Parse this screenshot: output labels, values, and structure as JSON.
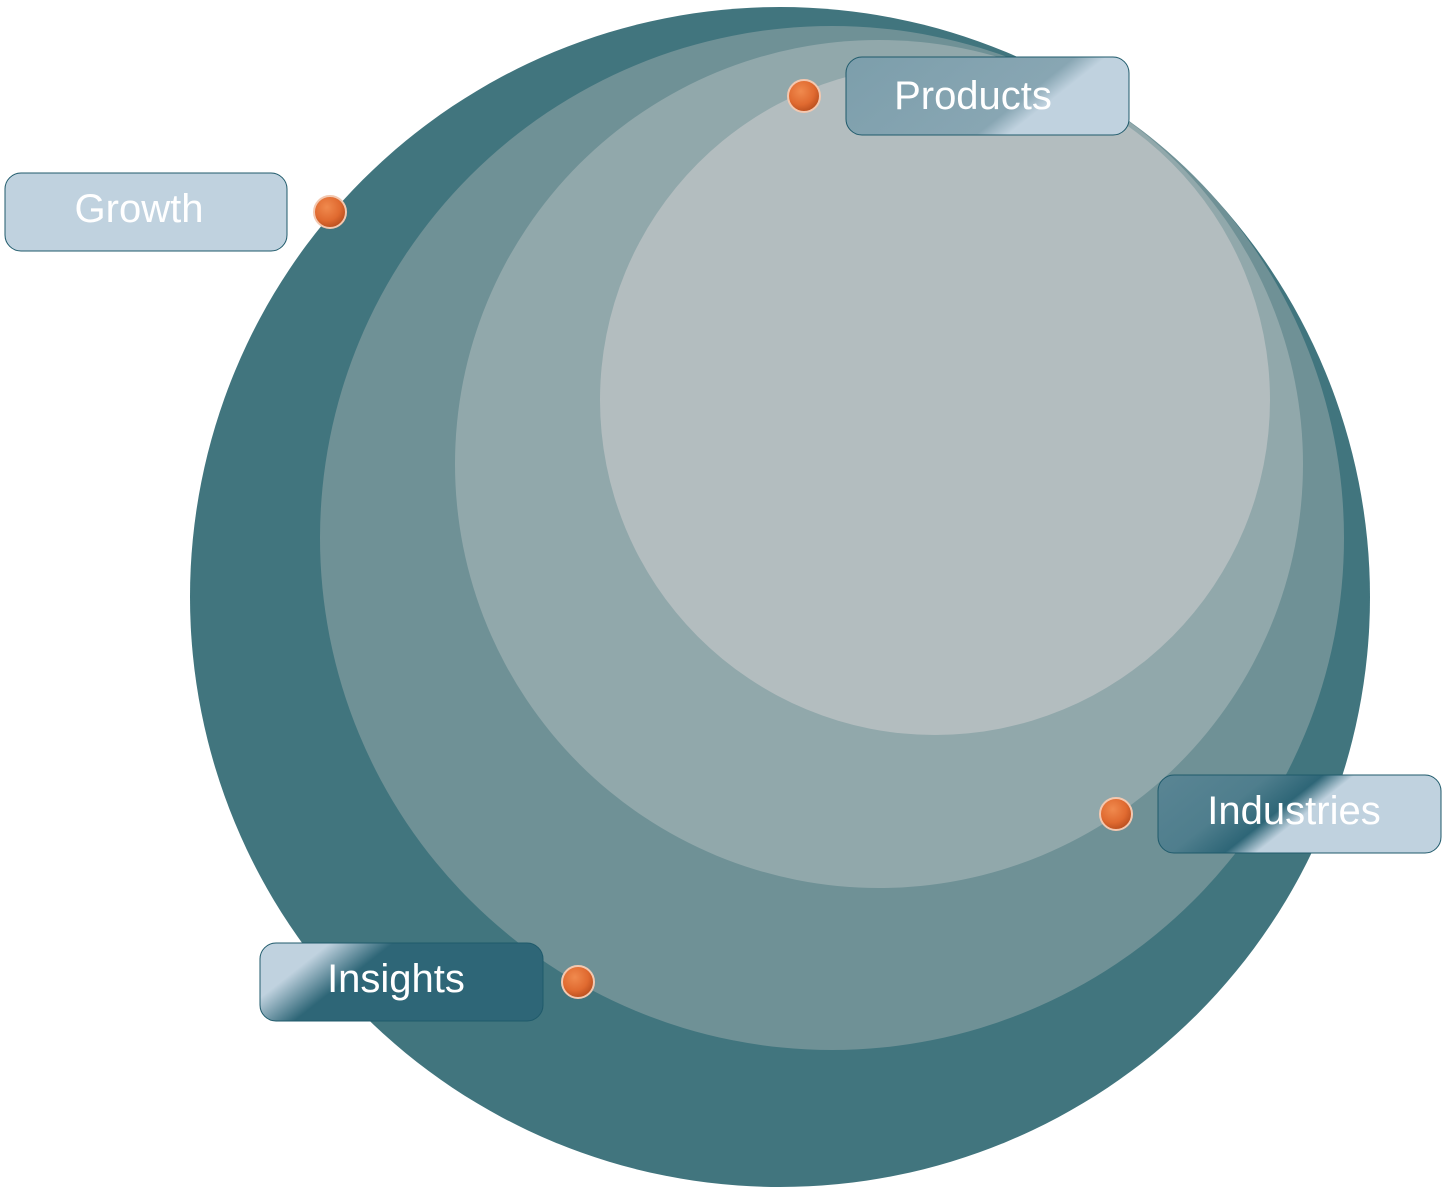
{
  "diagram": {
    "colors": {
      "ring_outer": "#41757e",
      "ring_2": "#6f9196",
      "ring_3": "#91a8ab",
      "ring_inner": "#b3bdbf",
      "dot": "#e06a30",
      "dot_stroke": "#f3c8b0",
      "label_light": "#c0d2df",
      "label_dark": "#2e6677"
    },
    "labels": {
      "products": "Products",
      "growth": "Growth",
      "industries": "Industries",
      "insights": "Insights"
    }
  }
}
